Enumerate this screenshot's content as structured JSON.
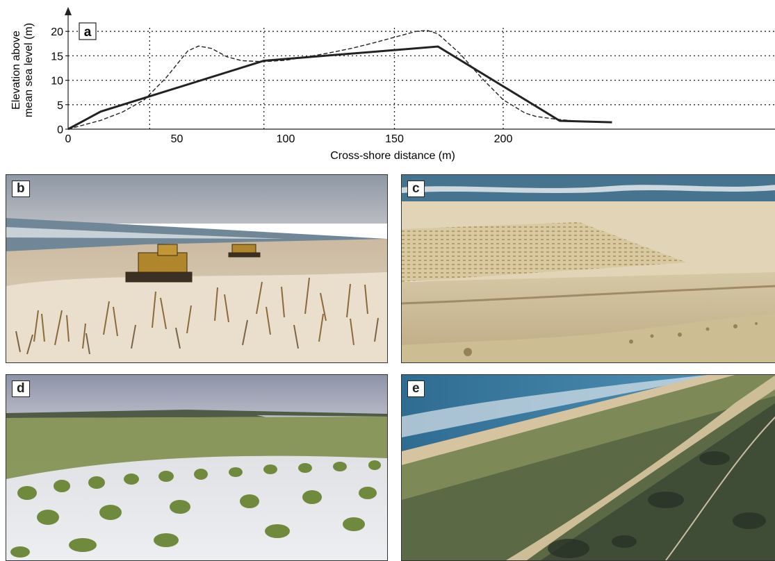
{
  "chart_data": {
    "type": "line",
    "panel_label": "a",
    "xlabel": "Cross-shore distance (m)",
    "ylabel_line1": "Elevation above",
    "ylabel_line2": "mean sea level (m)",
    "xlim": [
      0,
      250
    ],
    "ylim": [
      0,
      21
    ],
    "xticks": [
      0,
      50,
      100,
      150,
      200
    ],
    "yticks": [
      0,
      5,
      10,
      15,
      20
    ],
    "grid": "dotted",
    "vertical_gridlines": [
      37.5,
      90,
      150,
      200
    ],
    "series": [
      {
        "style": "solid",
        "x": [
          0,
          15,
          90,
          170,
          226,
          250
        ],
        "y": [
          0,
          3.6,
          14,
          16.9,
          1.7,
          1.4
        ]
      },
      {
        "style": "dashed",
        "x": [
          0,
          15,
          25,
          35,
          45,
          55,
          60,
          66,
          73,
          80,
          90,
          100,
          110,
          120,
          130,
          140,
          150,
          160,
          165,
          170,
          180,
          190,
          200,
          210,
          215,
          225,
          235,
          250
        ],
        "y": [
          0,
          1.8,
          3.5,
          6,
          10.5,
          16,
          17,
          16.5,
          14.8,
          14,
          13.8,
          14.1,
          14.8,
          15.6,
          16.5,
          17.6,
          18.8,
          20,
          20.2,
          19.5,
          15.5,
          10.5,
          6,
          3.3,
          2.6,
          2.0,
          1.6,
          1.4
        ]
      }
    ]
  },
  "photos": {
    "b": {
      "label": "b"
    },
    "c": {
      "label": "c"
    },
    "d": {
      "label": "d"
    },
    "e": {
      "label": "e"
    }
  },
  "colors": {
    "sky_b": "#9ea7b3",
    "sand": "#d8c8a6",
    "sea": "#4e7fa2",
    "grass": "#8d9a55",
    "vegetation_dark": "#4c5b3a"
  }
}
